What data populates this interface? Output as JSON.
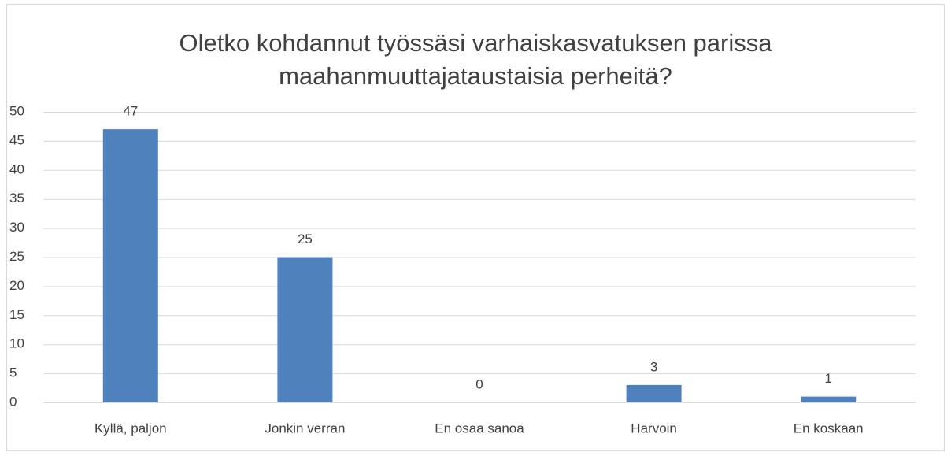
{
  "chart_data": {
    "type": "bar",
    "title": "Oletko kohdannut työssäsi varhaiskasvatuksen parissa maahanmuuttajataustaisia perheitä?",
    "categories": [
      "Kyllä, paljon",
      "Jonkin verran",
      "En osaa sanoa",
      "Harvoin",
      "En koskaan"
    ],
    "values": [
      47,
      25,
      0,
      3,
      1
    ],
    "color": "#4f81bd",
    "ylim": [
      0,
      50
    ],
    "yticks": [
      0,
      5,
      10,
      15,
      20,
      25,
      30,
      35,
      40,
      45,
      50
    ],
    "grid": true
  }
}
